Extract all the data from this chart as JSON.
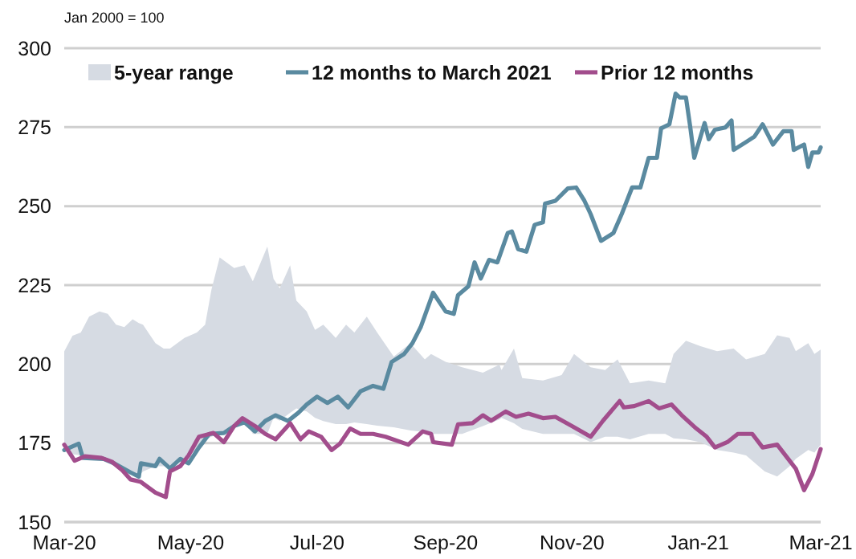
{
  "chart_data": {
    "type": "line",
    "ylabel": "Jan 2000 = 100",
    "xlim": [
      "2020-03-01",
      "2021-03-01"
    ],
    "xticks": [
      {
        "value": "2020-03-01",
        "label": "Mar-20"
      },
      {
        "value": "2020-05-01",
        "label": "May-20"
      },
      {
        "value": "2020-07-01",
        "label": "Jul-20"
      },
      {
        "value": "2020-09-01",
        "label": "Sep-20"
      },
      {
        "value": "2020-11-01",
        "label": "Nov-20"
      },
      {
        "value": "2021-01-01",
        "label": "Jan-21"
      },
      {
        "value": "2021-03-01",
        "label": "Mar-21"
      }
    ],
    "ylim": [
      150,
      300
    ],
    "yticks": [
      150,
      175,
      200,
      225,
      250,
      275,
      300
    ],
    "grid": "y",
    "legend": "top",
    "series": [
      {
        "name": "5-year range",
        "type": "area",
        "color": "#d6dbe3",
        "x": [
          "2020-03-01",
          "2020-03-05",
          "2020-03-09",
          "2020-03-13",
          "2020-03-18",
          "2020-03-22",
          "2020-03-26",
          "2020-03-30",
          "2020-04-03",
          "2020-04-06",
          "2020-04-08",
          "2020-04-14",
          "2020-04-18",
          "2020-04-21",
          "2020-04-28",
          "2020-05-04",
          "2020-05-08",
          "2020-05-11",
          "2020-05-15",
          "2020-05-22",
          "2020-05-27",
          "2020-05-31",
          "2020-06-07",
          "2020-06-10",
          "2020-06-13",
          "2020-06-18",
          "2020-06-21",
          "2020-06-26",
          "2020-06-30",
          "2020-07-04",
          "2020-07-10",
          "2020-07-15",
          "2020-07-19",
          "2020-07-25",
          "2020-07-30",
          "2020-08-07",
          "2020-08-15",
          "2020-08-22",
          "2020-08-25",
          "2020-09-01",
          "2020-09-09",
          "2020-09-19",
          "2020-09-27",
          "2020-09-28",
          "2020-10-04",
          "2020-10-08",
          "2020-10-18",
          "2020-10-27",
          "2020-11-02",
          "2020-11-10",
          "2020-11-17",
          "2020-11-23",
          "2020-11-29",
          "2020-12-08",
          "2020-12-16",
          "2020-12-20",
          "2020-12-26",
          "2021-01-02",
          "2021-01-10",
          "2021-01-18",
          "2021-01-24",
          "2021-02-02",
          "2021-02-08",
          "2021-02-14",
          "2021-02-17",
          "2021-02-23",
          "2021-02-26",
          "2021-03-01"
        ],
        "values": [
          null,
          null,
          null,
          null,
          null,
          null,
          null,
          null,
          null,
          null,
          null,
          null,
          null,
          null,
          null,
          null,
          null,
          null,
          null,
          null,
          null,
          null,
          null,
          null,
          null,
          null,
          null,
          null,
          null,
          null,
          null,
          null,
          null,
          null,
          null,
          null,
          null,
          null,
          null,
          null,
          null,
          null,
          null,
          null,
          null,
          null,
          null,
          null,
          null,
          null,
          null,
          null,
          null,
          null,
          null,
          null,
          null,
          null,
          null,
          null,
          null,
          null,
          null,
          null,
          null,
          null,
          null,
          null
        ],
        "upper": [
          204,
          209,
          210,
          215,
          216.7,
          215.9,
          212.5,
          211.7,
          214.2,
          213,
          212.5,
          206.6,
          204.9,
          204.9,
          208.3,
          210,
          212.5,
          223.5,
          233.8,
          230.4,
          231.3,
          226.2,
          237.2,
          227,
          224,
          231.3,
          220.1,
          216.7,
          210.8,
          212.5,
          208.3,
          212.5,
          210,
          215,
          210,
          202.4,
          206.6,
          201.5,
          203.2,
          200.7,
          199,
          197.3,
          199.8,
          198.1,
          204.9,
          195.6,
          194.8,
          196.5,
          203.2,
          199,
          198.1,
          201.5,
          193.9,
          194.8,
          193.9,
          203.2,
          207.4,
          205.7,
          204.1,
          204.9,
          201.5,
          203.2,
          209.1,
          208.3,
          204.1,
          206.6,
          203.2,
          204.6
        ],
        "lower": [
          172.8,
          171.5,
          171.1,
          170.8,
          170.3,
          169.5,
          168,
          166.9,
          165.5,
          164.7,
          166,
          167.7,
          167.7,
          168,
          170,
          173,
          176.2,
          177,
          177.9,
          181.3,
          182.1,
          177.9,
          177.9,
          183,
          182.1,
          184.6,
          186,
          185,
          183,
          182,
          181,
          181,
          181.5,
          181,
          180.5,
          180,
          179,
          178.5,
          177.9,
          177.9,
          177.9,
          180.4,
          182.5,
          183,
          181.3,
          179.5,
          177.9,
          177.9,
          177.9,
          175.3,
          177,
          177,
          176.2,
          177.9,
          177.9,
          176.5,
          176.2,
          175.3,
          172.8,
          172,
          171.1,
          166,
          164.4,
          167.7,
          170,
          172.8,
          172,
          174.5
        ]
      },
      {
        "name": "12 months to March 2021",
        "color": "#5a8aa0",
        "x": [
          "2020-03-01",
          "2020-03-08",
          "2020-03-10",
          "2020-03-20",
          "2020-03-25",
          "2020-04-02",
          "2020-04-06",
          "2020-04-07",
          "2020-04-14",
          "2020-04-16",
          "2020-04-21",
          "2020-04-26",
          "2020-04-30",
          "2020-05-05",
          "2020-05-10",
          "2020-05-17",
          "2020-05-22",
          "2020-05-27",
          "2020-06-01",
          "2020-06-06",
          "2020-06-11",
          "2020-06-17",
          "2020-06-22",
          "2020-06-26",
          "2020-07-01",
          "2020-07-06",
          "2020-07-11",
          "2020-07-16",
          "2020-07-22",
          "2020-07-28",
          "2020-08-02",
          "2020-08-06",
          "2020-08-12",
          "2020-08-16",
          "2020-08-20",
          "2020-08-26",
          "2020-09-01",
          "2020-09-05",
          "2020-09-07",
          "2020-09-12",
          "2020-09-15",
          "2020-09-18",
          "2020-09-22",
          "2020-09-26",
          "2020-10-01",
          "2020-10-03",
          "2020-10-06",
          "2020-10-10",
          "2020-10-14",
          "2020-10-18",
          "2020-10-19",
          "2020-10-24",
          "2020-10-30",
          "2020-11-03",
          "2020-11-07",
          "2020-11-10",
          "2020-11-15",
          "2020-11-21",
          "2020-11-25",
          "2020-11-30",
          "2020-12-04",
          "2020-12-08",
          "2020-12-12",
          "2020-12-14",
          "2020-12-18",
          "2020-12-21",
          "2020-12-23",
          "2020-12-26",
          "2020-12-28",
          "2020-12-30",
          "2021-01-04",
          "2021-01-06",
          "2021-01-09",
          "2021-01-14",
          "2021-01-17",
          "2021-01-18",
          "2021-01-24",
          "2021-01-28",
          "2021-02-01",
          "2021-02-06",
          "2021-02-11",
          "2021-02-15",
          "2021-02-16",
          "2021-02-21",
          "2021-02-23",
          "2021-02-25",
          "2021-02-28",
          "2021-03-01"
        ],
        "values": [
          172.8,
          174.8,
          170.3,
          170,
          168.6,
          165.7,
          164.4,
          168.6,
          167.7,
          170,
          167,
          170,
          168.6,
          173.6,
          177.9,
          178.2,
          180.4,
          181.6,
          178.7,
          182,
          183.8,
          182,
          184.6,
          187.2,
          189.7,
          187.7,
          189.7,
          186.3,
          191.4,
          193.1,
          192.2,
          200.7,
          203.2,
          206.6,
          211.7,
          222.6,
          216.7,
          215.9,
          221.8,
          224.6,
          232.2,
          227.1,
          233,
          232.2,
          241.5,
          242,
          236.4,
          235.6,
          244.1,
          244.9,
          250.8,
          251.7,
          255.6,
          255.9,
          251.7,
          247.5,
          239,
          241.5,
          247.5,
          255.9,
          255.9,
          265.3,
          265.3,
          274.6,
          275.9,
          285.6,
          284.4,
          284.4,
          275.4,
          265.3,
          276.3,
          271.2,
          274.2,
          274.9,
          277.1,
          267.8,
          270.3,
          272,
          275.9,
          269.5,
          273.7,
          273.7,
          267.8,
          269.5,
          262.4,
          267,
          267,
          268.6
        ]
      },
      {
        "name": "Prior 12 months",
        "color": "#a24d8c",
        "x": [
          "2020-03-01",
          "2020-03-06",
          "2020-03-11",
          "2020-03-19",
          "2020-03-24",
          "2020-03-29",
          "2020-04-02",
          "2020-04-07",
          "2020-04-14",
          "2020-04-19",
          "2020-04-21",
          "2020-04-26",
          "2020-04-30",
          "2020-05-05",
          "2020-05-12",
          "2020-05-17",
          "2020-05-22",
          "2020-05-26",
          "2020-06-01",
          "2020-06-06",
          "2020-06-11",
          "2020-06-18",
          "2020-06-23",
          "2020-06-27",
          "2020-07-03",
          "2020-07-08",
          "2020-07-12",
          "2020-07-17",
          "2020-07-22",
          "2020-07-28",
          "2020-08-03",
          "2020-08-14",
          "2020-08-21",
          "2020-08-25",
          "2020-08-26",
          "2020-09-04",
          "2020-09-07",
          "2020-09-14",
          "2020-09-19",
          "2020-09-23",
          "2020-09-30",
          "2020-10-05",
          "2020-10-11",
          "2020-10-18",
          "2020-10-24",
          "2020-11-01",
          "2020-11-10",
          "2020-11-16",
          "2020-11-24",
          "2020-11-26",
          "2020-12-01",
          "2020-12-08",
          "2020-12-13",
          "2020-12-19",
          "2020-12-24",
          "2020-12-31",
          "2021-01-05",
          "2021-01-09",
          "2021-01-15",
          "2021-01-20",
          "2021-01-27",
          "2021-02-01",
          "2021-02-08",
          "2021-02-14",
          "2021-02-17",
          "2021-02-21",
          "2021-02-25",
          "2021-03-01"
        ],
        "values": [
          174.5,
          169.4,
          170.8,
          170.3,
          169.1,
          166.4,
          163.5,
          162.7,
          159.3,
          157.9,
          166,
          167.7,
          171.1,
          177,
          178.2,
          175.3,
          180.4,
          182.9,
          180.4,
          177.9,
          176.2,
          181.3,
          176.2,
          178.7,
          177,
          172.8,
          174.8,
          179.6,
          177.9,
          177.9,
          177,
          174.5,
          178.7,
          177.9,
          175.3,
          174.5,
          180.9,
          181.3,
          183.8,
          182.1,
          185,
          183.3,
          184.3,
          182.9,
          183.3,
          180.4,
          177,
          182.1,
          188.3,
          186.3,
          186.7,
          188.3,
          186,
          187.2,
          183.8,
          179.6,
          177,
          173.6,
          175.3,
          177.9,
          177.9,
          173.6,
          174.5,
          169.4,
          166.9,
          160.1,
          165.2,
          173.1
        ]
      }
    ]
  }
}
